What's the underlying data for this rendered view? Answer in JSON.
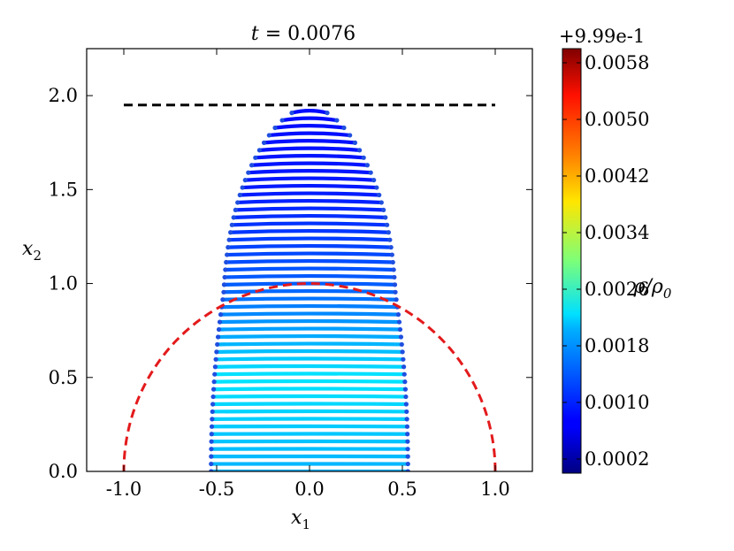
{
  "chart_data": {
    "type": "scatter",
    "title": "t = 0.0076",
    "title_var": "t",
    "title_eq": " = 0.0076",
    "xlabel_main": "x",
    "xlabel_sub": "1",
    "ylabel_main": "x",
    "ylabel_sub": "2",
    "xlim": [
      -1.2,
      1.2
    ],
    "ylim": [
      0.0,
      2.25
    ],
    "x_ticks": [
      -1.0,
      -0.5,
      0.0,
      0.5,
      1.0
    ],
    "x_tick_labels": [
      "-1.0",
      "-0.5",
      "0.0",
      "0.5",
      "1.0"
    ],
    "y_ticks": [
      0.0,
      0.5,
      1.0,
      1.5,
      2.0
    ],
    "y_tick_labels": [
      "0.0",
      "0.5",
      "1.0",
      "1.5",
      "2.0"
    ],
    "grid": false,
    "reference_lines": [
      {
        "style": "dashed",
        "color": "#000000",
        "kind": "horizontal",
        "y": 1.95,
        "x_range": [
          -1.0,
          1.0
        ]
      },
      {
        "style": "dashed",
        "color": "#e31a1c",
        "kind": "semicircle",
        "center": [
          0.0,
          0.0
        ],
        "radius": 1.0
      }
    ],
    "particle_cloud": {
      "shape": "half-ellipse",
      "half_width": 0.53,
      "height": 1.95,
      "row_spacing": 0.04,
      "bulge_rows_x_range": [
        0.95,
        1.95
      ],
      "bulge_extra_width": 0.03,
      "density_offset_at_rows": [
        {
          "y": 0.0,
          "value": 0.0018
        },
        {
          "y": 0.5,
          "value": 0.0021
        },
        {
          "y": 1.0,
          "value": 0.0013
        },
        {
          "y": 1.5,
          "value": 0.0009
        },
        {
          "y": 1.95,
          "value": 0.0008
        }
      ]
    },
    "colorbar": {
      "label_main": "ρ/ρ",
      "label_sub": "0",
      "offset_label": "+9.99e-1",
      "colormap": "jet",
      "range": [
        0.0,
        0.006
      ],
      "ticks": [
        0.0002,
        0.001,
        0.0018,
        0.0026,
        0.0034,
        0.0042,
        0.005,
        0.0058
      ],
      "tick_labels": [
        "0.0002",
        "0.0010",
        "0.0018",
        "0.0026",
        "0.0034",
        "0.0042",
        "0.0050",
        "0.0058"
      ]
    }
  }
}
